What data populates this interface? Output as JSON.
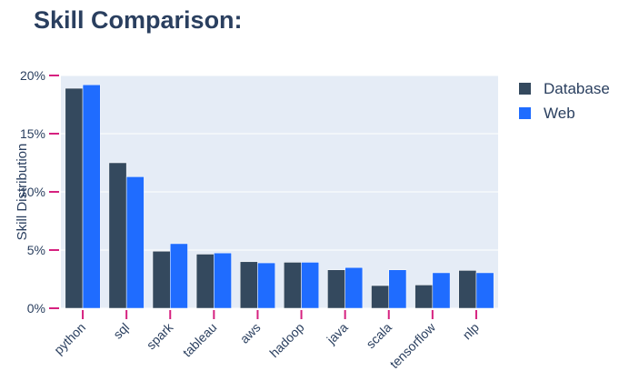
{
  "chart_data": {
    "type": "bar",
    "title": "Skill Comparison:",
    "xlabel": "",
    "ylabel": "Skill Distribution",
    "categories": [
      "python",
      "sql",
      "spark",
      "tableau",
      "aws",
      "hadoop",
      "java",
      "scala",
      "tensorflow",
      "nlp"
    ],
    "series": [
      {
        "name": "Database",
        "color": "#34495e",
        "values": [
          18.9,
          12.5,
          4.9,
          4.65,
          4.0,
          3.95,
          3.3,
          1.95,
          2.0,
          3.25
        ]
      },
      {
        "name": "Web",
        "color": "#1f6cff",
        "values": [
          19.2,
          11.3,
          5.55,
          4.75,
          3.9,
          3.95,
          3.5,
          3.3,
          3.05,
          3.05
        ]
      }
    ],
    "ylim": [
      0,
      20
    ],
    "yticks": [
      0,
      5,
      10,
      15,
      20
    ],
    "ytick_labels": [
      "0%",
      "5%",
      "10%",
      "15%",
      "20%"
    ],
    "grid": true,
    "legend_position": "top-right",
    "plot_background": "#e5ecf6",
    "tick_color": "#d6217f"
  }
}
